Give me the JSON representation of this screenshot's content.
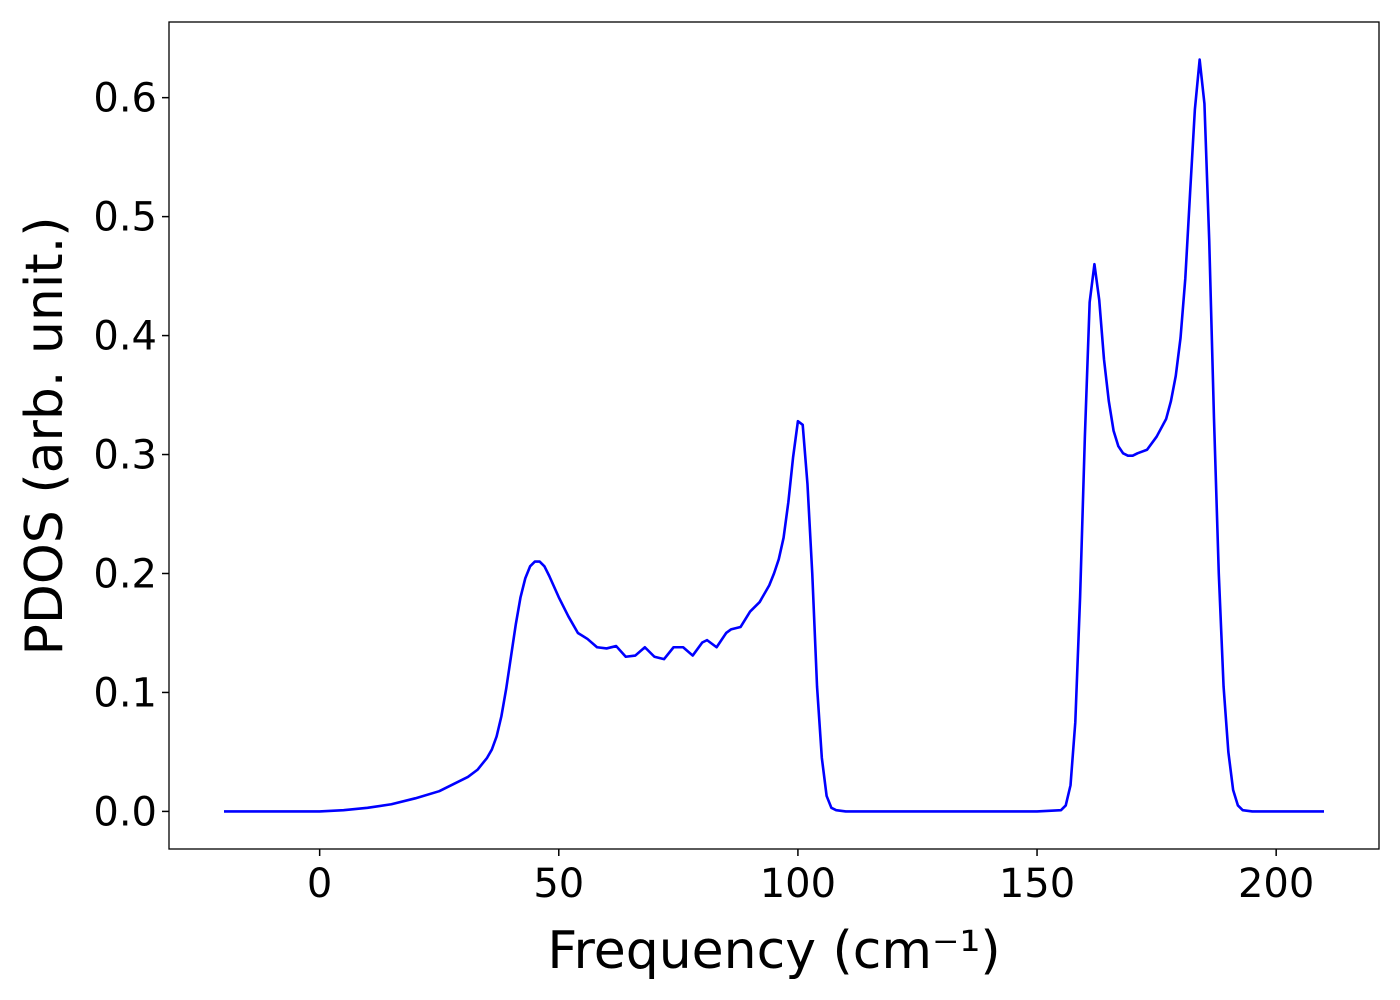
{
  "chart_data": {
    "type": "line",
    "x_label": "Frequency (cm⁻¹)",
    "y_label": "PDOS (arb. unit.)",
    "x": [
      -20,
      0,
      5,
      10,
      15,
      20,
      25,
      28,
      31,
      33,
      35,
      36,
      37,
      38,
      39,
      40,
      41,
      42,
      43,
      44,
      45,
      46,
      47,
      48,
      50,
      52,
      54,
      56,
      58,
      60,
      62,
      64,
      66,
      68,
      70,
      72,
      74,
      76,
      78,
      80,
      81,
      83,
      85,
      86,
      88,
      90,
      92,
      94,
      95,
      96,
      97,
      98,
      99,
      100,
      101,
      102,
      103,
      104,
      105,
      106,
      107,
      108,
      110,
      150,
      155,
      156,
      157,
      158,
      159,
      160,
      161,
      162,
      163,
      164,
      165,
      166,
      167,
      168,
      169,
      170,
      171,
      173,
      175,
      177,
      178,
      179,
      180,
      181,
      182,
      183,
      184,
      185,
      186,
      187,
      188,
      189,
      190,
      191,
      192,
      193,
      195,
      210
    ],
    "series": [
      {
        "name": "PDOS",
        "color": "#0000ff",
        "values": [
          0,
          0,
          0.001,
          0.003,
          0.006,
          0.011,
          0.017,
          0.023,
          0.029,
          0.035,
          0.045,
          0.052,
          0.063,
          0.08,
          0.103,
          0.13,
          0.157,
          0.18,
          0.196,
          0.206,
          0.21,
          0.21,
          0.206,
          0.198,
          0.18,
          0.164,
          0.15,
          0.145,
          0.138,
          0.137,
          0.139,
          0.13,
          0.131,
          0.138,
          0.13,
          0.128,
          0.138,
          0.138,
          0.131,
          0.142,
          0.144,
          0.138,
          0.15,
          0.153,
          0.155,
          0.168,
          0.176,
          0.19,
          0.2,
          0.212,
          0.23,
          0.26,
          0.298,
          0.328,
          0.325,
          0.275,
          0.2,
          0.105,
          0.045,
          0.013,
          0.003,
          0.001,
          0,
          0,
          0.001,
          0.005,
          0.022,
          0.075,
          0.18,
          0.315,
          0.428,
          0.46,
          0.43,
          0.38,
          0.345,
          0.32,
          0.307,
          0.301,
          0.299,
          0.299,
          0.301,
          0.304,
          0.315,
          0.33,
          0.345,
          0.366,
          0.398,
          0.448,
          0.52,
          0.59,
          0.632,
          0.595,
          0.48,
          0.33,
          0.2,
          0.105,
          0.05,
          0.018,
          0.005,
          0.001,
          0,
          0
        ]
      }
    ],
    "xlim": [
      -31.5,
      221.5
    ],
    "ylim": [
      -0.0316,
      0.6636
    ],
    "xticks": [
      0,
      50,
      100,
      150,
      200
    ],
    "yticks": [
      {
        "value": 0,
        "label": "0.0"
      },
      0.1,
      0.2,
      0.3,
      0.4,
      0.5,
      0.6
    ]
  }
}
